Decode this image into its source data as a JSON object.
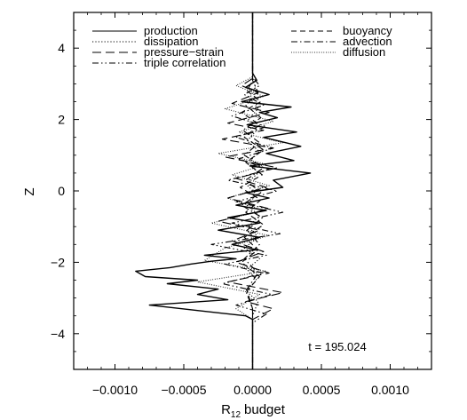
{
  "chart_data": {
    "type": "line",
    "title": "",
    "xlabel": "R",
    "xlabel_sub": "12",
    "xlabel_suffix": "budget",
    "ylabel": "Z",
    "xlim": [
      -0.0013,
      0.0013
    ],
    "ylim": [
      -5,
      5
    ],
    "xticks": [
      -0.001,
      -0.0005,
      0.0,
      0.0005,
      0.001
    ],
    "xtick_labels": [
      "−0.0010",
      "−0.0005",
      "0.0000",
      "0.0005",
      "0.0010"
    ],
    "yticks": [
      -4,
      -2,
      0,
      2,
      4
    ],
    "ytick_labels": [
      "−4",
      "−2",
      "0",
      "2",
      "4"
    ],
    "grid": false,
    "legend_placement": "top",
    "annotation": "t = 195.024",
    "series": [
      {
        "name": "production",
        "style": "solid",
        "x": [
          0,
          0,
          3e-05,
          -5e-05,
          0.00012,
          -8e-05,
          0.00028,
          5e-05,
          0.00018,
          -4e-05,
          0.00032,
          8e-05,
          0.00035,
          0.0001,
          0.0003,
          -2e-05,
          0.00042,
          0.00015,
          0.00022,
          -5e-05,
          0.00012,
          -0.00012,
          0.0001,
          -0.00018,
          5e-05,
          -0.00025,
          5e-05,
          -0.00015,
          3e-05,
          -0.00035,
          -0.00012,
          -0.0003,
          -0.00045,
          -0.0006,
          -0.00085,
          -0.00078,
          -0.0004,
          -0.00062,
          -0.00025,
          -0.0004,
          -0.00018,
          -0.00075,
          -0.0004,
          -5e-05,
          0,
          0
        ],
        "y": [
          5,
          3.3,
          3.1,
          2.9,
          2.7,
          2.5,
          2.35,
          2.2,
          2.05,
          1.85,
          1.65,
          1.5,
          1.25,
          1.05,
          0.85,
          0.7,
          0.5,
          0.3,
          0.1,
          -0.05,
          -0.2,
          -0.4,
          -0.55,
          -0.75,
          -0.9,
          -1.1,
          -1.3,
          -1.5,
          -1.65,
          -1.8,
          -1.9,
          -1.97,
          -2.05,
          -2.15,
          -2.25,
          -2.4,
          -2.5,
          -2.6,
          -2.75,
          -2.9,
          -3.05,
          -3.2,
          -3.35,
          -3.5,
          -3.6,
          -5
        ]
      },
      {
        "name": "dissipation",
        "style": "dotted",
        "x": [
          0,
          0,
          2e-05,
          -2e-05,
          4e-05,
          -3e-05,
          3e-05,
          -4e-05,
          5e-05,
          -3e-05,
          4e-05,
          -5e-05,
          3e-05,
          -4e-05,
          5e-05,
          -3e-05,
          4e-05,
          -6e-05,
          5e-05,
          -4e-05,
          3e-05,
          -5e-05,
          4e-05,
          0,
          0
        ],
        "y": [
          5,
          3.2,
          2.9,
          2.6,
          2.3,
          2.0,
          1.7,
          1.4,
          1.1,
          0.8,
          0.5,
          0.2,
          -0.1,
          -0.4,
          -0.7,
          -1.0,
          -1.3,
          -1.6,
          -1.9,
          -2.2,
          -2.5,
          -2.8,
          -3.1,
          -3.5,
          -5
        ]
      },
      {
        "name": "pressure−strain",
        "style": "longdash",
        "x": [
          0,
          0,
          -8e-05,
          4e-05,
          -0.00015,
          0.00012,
          -0.00018,
          8e-05,
          -0.00022,
          0.00015,
          -0.0002,
          0.00018,
          -0.00012,
          0.0001,
          -0.00018,
          0.00012,
          -0.00025,
          5e-05,
          -0.00015,
          8e-05,
          -0.00012,
          0.00012,
          -0.00018,
          0.00022,
          -5e-05,
          0.00015,
          0,
          0
        ],
        "y": [
          5,
          3.15,
          2.95,
          2.75,
          2.45,
          2.2,
          1.9,
          1.7,
          1.45,
          1.2,
          0.95,
          0.65,
          0.35,
          0.1,
          -0.2,
          -0.5,
          -0.85,
          -1.1,
          -1.4,
          -1.7,
          -2.0,
          -2.3,
          -2.55,
          -2.85,
          -3.1,
          -3.3,
          -3.6,
          -5
        ]
      },
      {
        "name": "triple correlation",
        "style": "dashdotdot",
        "x": [
          0,
          0,
          5e-05,
          -6e-05,
          8e-05,
          -0.00015,
          0.0001,
          -0.00012,
          0.00015,
          -0.0001,
          0.00012,
          -0.00018,
          0.00018,
          -0.00012,
          0.00022,
          -0.00015,
          0.0002,
          -0.0003,
          0.0001,
          -0.0002,
          8e-05,
          -0.00022,
          0.00014,
          -0.00012,
          0.0001,
          0,
          0
        ],
        "y": [
          5,
          3.2,
          2.95,
          2.7,
          2.4,
          2.1,
          1.8,
          1.5,
          1.2,
          0.9,
          0.6,
          0.3,
          0,
          -0.3,
          -0.6,
          -0.9,
          -1.2,
          -1.5,
          -1.8,
          -2.05,
          -2.3,
          -2.6,
          -2.9,
          -3.2,
          -3.45,
          -3.7,
          -5
        ]
      },
      {
        "name": "buoyancy",
        "style": "dashed",
        "x": [
          0,
          0,
          -4e-05,
          6e-05,
          -8e-05,
          5e-05,
          -6e-05,
          8e-05,
          -5e-05,
          7e-05,
          -9e-05,
          6e-05,
          -5e-05,
          8e-05,
          -6e-05,
          4e-05,
          -8e-05,
          5e-05,
          -4e-05,
          0,
          0
        ],
        "y": [
          5,
          3.1,
          2.8,
          2.5,
          2.2,
          1.85,
          1.5,
          1.15,
          0.8,
          0.45,
          0.1,
          -0.25,
          -0.6,
          -0.95,
          -1.3,
          -1.65,
          -2.0,
          -2.4,
          -2.8,
          -3.3,
          -5
        ]
      },
      {
        "name": "advection",
        "style": "dashdot",
        "x": [
          0,
          0,
          4e-05,
          -5e-05,
          6e-05,
          -7e-05,
          5e-05,
          -6e-05,
          8e-05,
          -5e-05,
          6e-05,
          -8e-05,
          7e-05,
          -4e-05,
          5e-05,
          -6e-05,
          4e-05,
          -5e-05,
          0,
          0
        ],
        "y": [
          5,
          3.1,
          2.75,
          2.4,
          2.05,
          1.7,
          1.35,
          1.0,
          0.65,
          0.3,
          -0.05,
          -0.4,
          -0.75,
          -1.1,
          -1.5,
          -1.9,
          -2.3,
          -2.8,
          -3.3,
          -5
        ]
      },
      {
        "name": "diffusion",
        "style": "finedot",
        "x": [
          0,
          0,
          -0.00012,
          8e-05,
          -0.0002,
          0.00015,
          -0.0001,
          0.00022,
          -0.00025,
          0.0001,
          -0.00015,
          0.00012,
          -0.00018,
          8e-05,
          -0.0003,
          0.00012,
          -0.0002,
          -0.00035,
          0.0001,
          -0.0004,
          5e-05,
          -0.00012,
          0,
          0
        ],
        "y": [
          5,
          3.2,
          2.95,
          2.65,
          2.3,
          1.95,
          1.65,
          1.35,
          1.05,
          0.75,
          0.45,
          0.15,
          -0.2,
          -0.55,
          -0.9,
          -1.25,
          -1.6,
          -1.95,
          -2.25,
          -2.55,
          -2.9,
          -3.3,
          -3.6,
          -5
        ]
      }
    ]
  }
}
